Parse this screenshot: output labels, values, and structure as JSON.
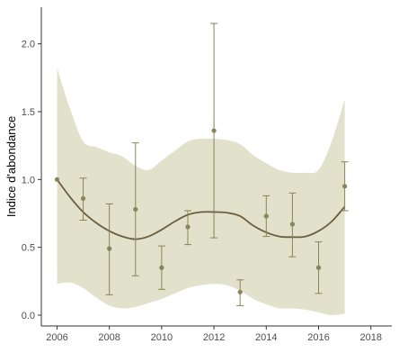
{
  "chart_data": {
    "type": "scatter",
    "ylabel": "Indice d'abondance",
    "xlabel": "",
    "title": "",
    "xlim": [
      2005.4,
      2018.8
    ],
    "ylim": [
      -0.08,
      2.27
    ],
    "x_ticks": [
      "2006",
      "2008",
      "2010",
      "2012",
      "2014",
      "2016",
      "2018"
    ],
    "y_ticks": [
      "0.0",
      "0.5",
      "1.0",
      "1.5",
      "2.0"
    ],
    "grid": false,
    "legend": "none",
    "colors": {
      "points": "#8a8458",
      "error_bars": "#8a8458",
      "smooth_line": "#6b5e3f",
      "ribbon": "#e1e1cc",
      "axis": "#333333",
      "tick_text": "#4d4d4d",
      "title_text": "#000000"
    },
    "points": [
      {
        "x": 2006,
        "y": 1.0,
        "ymin": 1.0,
        "ymax": 1.0
      },
      {
        "x": 2007,
        "y": 0.86,
        "ymin": 0.7,
        "ymax": 1.01
      },
      {
        "x": 2008,
        "y": 0.49,
        "ymin": 0.15,
        "ymax": 0.82
      },
      {
        "x": 2009,
        "y": 0.78,
        "ymin": 0.29,
        "ymax": 1.27
      },
      {
        "x": 2010,
        "y": 0.35,
        "ymin": 0.19,
        "ymax": 0.51
      },
      {
        "x": 2011,
        "y": 0.65,
        "ymin": 0.52,
        "ymax": 0.77
      },
      {
        "x": 2012,
        "y": 1.36,
        "ymin": 0.57,
        "ymax": 2.15
      },
      {
        "x": 2013,
        "y": 0.17,
        "ymin": 0.07,
        "ymax": 0.26
      },
      {
        "x": 2014,
        "y": 0.73,
        "ymin": 0.58,
        "ymax": 0.88
      },
      {
        "x": 2015,
        "y": 0.67,
        "ymin": 0.43,
        "ymax": 0.9
      },
      {
        "x": 2016,
        "y": 0.35,
        "ymin": 0.16,
        "ymax": 0.54
      },
      {
        "x": 2017,
        "y": 0.95,
        "ymin": 0.77,
        "ymax": 1.13
      }
    ],
    "smooth": [
      {
        "x": 2006.0,
        "y": 1.0,
        "lo": 0.23,
        "hi": 1.82
      },
      {
        "x": 2006.5,
        "y": 0.87,
        "lo": 0.24,
        "hi": 1.52
      },
      {
        "x": 2007.0,
        "y": 0.76,
        "lo": 0.2,
        "hi": 1.28
      },
      {
        "x": 2007.5,
        "y": 0.68,
        "lo": 0.13,
        "hi": 1.24
      },
      {
        "x": 2008.0,
        "y": 0.62,
        "lo": 0.07,
        "hi": 1.2
      },
      {
        "x": 2008.5,
        "y": 0.58,
        "lo": 0.05,
        "hi": 1.17
      },
      {
        "x": 2009.0,
        "y": 0.56,
        "lo": 0.06,
        "hi": 1.1
      },
      {
        "x": 2009.5,
        "y": 0.58,
        "lo": 0.09,
        "hi": 1.07
      },
      {
        "x": 2010.0,
        "y": 0.63,
        "lo": 0.12,
        "hi": 1.14
      },
      {
        "x": 2010.5,
        "y": 0.69,
        "lo": 0.16,
        "hi": 1.21
      },
      {
        "x": 2011.0,
        "y": 0.74,
        "lo": 0.2,
        "hi": 1.28
      },
      {
        "x": 2011.5,
        "y": 0.76,
        "lo": 0.22,
        "hi": 1.3
      },
      {
        "x": 2012.0,
        "y": 0.76,
        "lo": 0.23,
        "hi": 1.3
      },
      {
        "x": 2012.5,
        "y": 0.755,
        "lo": 0.22,
        "hi": 1.29
      },
      {
        "x": 2013.0,
        "y": 0.73,
        "lo": 0.18,
        "hi": 1.26
      },
      {
        "x": 2013.5,
        "y": 0.66,
        "lo": 0.12,
        "hi": 1.18
      },
      {
        "x": 2014.0,
        "y": 0.61,
        "lo": 0.08,
        "hi": 1.12
      },
      {
        "x": 2014.5,
        "y": 0.58,
        "lo": 0.05,
        "hi": 1.07
      },
      {
        "x": 2015.0,
        "y": 0.575,
        "lo": 0.05,
        "hi": 1.05
      },
      {
        "x": 2015.5,
        "y": 0.58,
        "lo": 0.04,
        "hi": 1.05
      },
      {
        "x": 2016.0,
        "y": 0.62,
        "lo": 0.02,
        "hi": 1.07
      },
      {
        "x": 2016.5,
        "y": 0.69,
        "lo": 0.0,
        "hi": 1.28
      },
      {
        "x": 2017.0,
        "y": 0.8,
        "lo": 0.01,
        "hi": 1.59
      }
    ]
  }
}
